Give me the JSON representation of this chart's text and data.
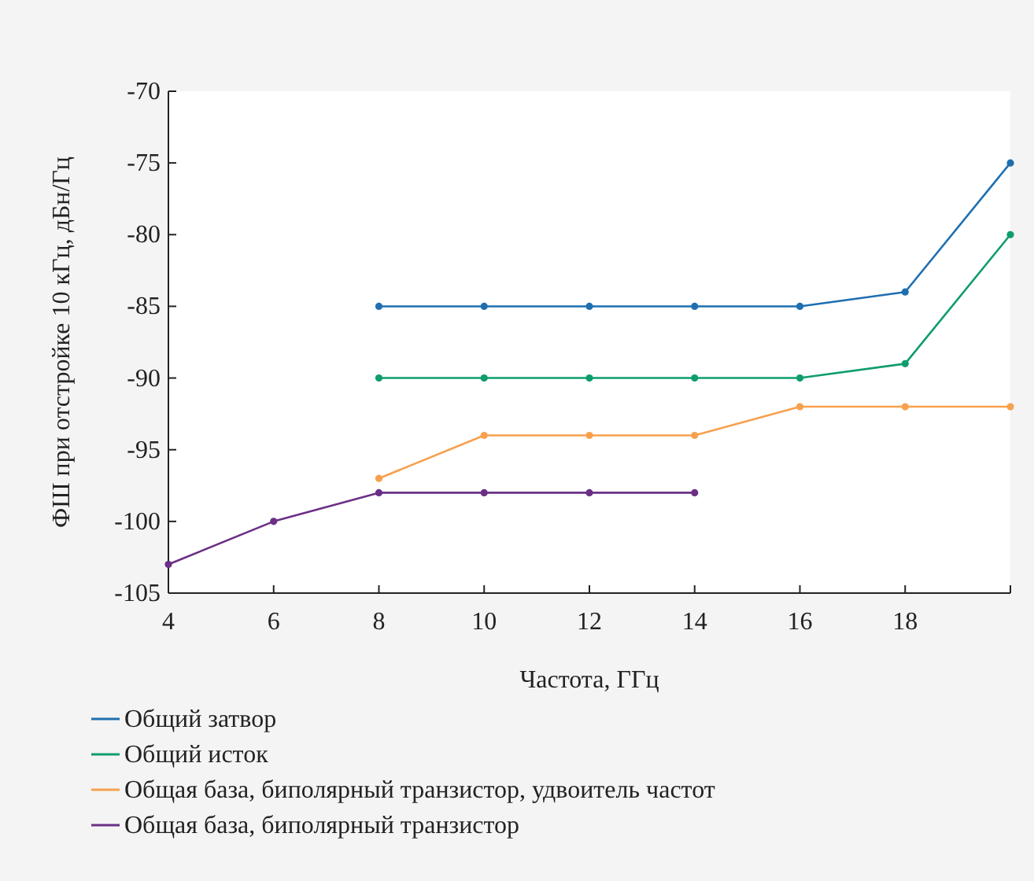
{
  "chart_data": {
    "type": "line",
    "xlabel": "Частота, ГГц",
    "ylabel": "ФШ при отстройке 10 кГц, дБн/Гц",
    "xlim": [
      4,
      20
    ],
    "xticks": [
      4,
      6,
      8,
      10,
      12,
      14,
      16,
      18,
      {
        "value": 20,
        "label": null
      }
    ],
    "ylim": [
      -105,
      -70
    ],
    "yticks": [
      -105,
      -100,
      -95,
      -90,
      -85,
      -80,
      -75,
      -70
    ],
    "grid": false,
    "legend": "bottom",
    "marker": "circle",
    "line_style": "solid",
    "series": [
      {
        "name": "Общий затвор",
        "color": "#1f6fb0",
        "x": [
          8,
          10,
          12,
          14,
          16,
          18,
          20
        ],
        "values": [
          -85,
          -85,
          -85,
          -85,
          -85,
          -84,
          -75
        ]
      },
      {
        "name": "Общий исток",
        "color": "#0f9d6e",
        "x": [
          8,
          10,
          12,
          14,
          16,
          18,
          20
        ],
        "values": [
          -90,
          -90,
          -90,
          -90,
          -90,
          -89,
          -80
        ]
      },
      {
        "name": "Общая база, биполярный транзистор, удвоитель частот",
        "color": "#f7a14e",
        "x": [
          8,
          10,
          12,
          14,
          16,
          18,
          20
        ],
        "values": [
          -97,
          -94,
          -94,
          -94,
          -92,
          -92,
          -92
        ]
      },
      {
        "name": "Общая база, биполярный транзистор",
        "color": "#6b2f86",
        "x": [
          4,
          6,
          8,
          10,
          12,
          14
        ],
        "values": [
          -103,
          -100,
          -98,
          -98,
          -98,
          -98
        ]
      }
    ]
  }
}
